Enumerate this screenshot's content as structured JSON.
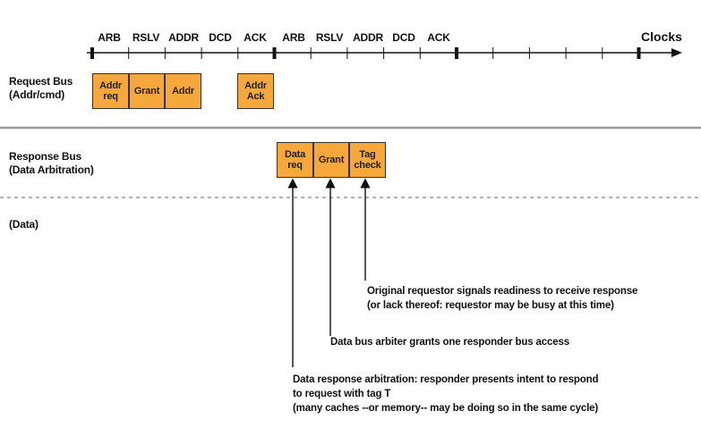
{
  "timeline": {
    "phases": [
      "ARB",
      "RSLV",
      "ADDR",
      "DCD",
      "ACK",
      "ARB",
      "RSLV",
      "ADDR",
      "DCD",
      "ACK"
    ],
    "axis_label": "Clocks"
  },
  "request_bus": {
    "label_line1": "Request Bus",
    "label_line2": "(Addr/cmd)",
    "boxes": [
      {
        "line1": "Addr",
        "line2": "req"
      },
      {
        "line1": "Grant",
        "line2": ""
      },
      {
        "line1": "Addr",
        "line2": ""
      },
      {
        "line1": "Addr",
        "line2": "Ack"
      }
    ]
  },
  "response_bus": {
    "label_line1": "Response Bus",
    "label_line2": "(Data Arbitration)",
    "boxes": [
      {
        "line1": "Data",
        "line2": "req"
      },
      {
        "line1": "Grant",
        "line2": ""
      },
      {
        "line1": "Tag",
        "line2": "check"
      }
    ]
  },
  "data_bus": {
    "label": "(Data)"
  },
  "annotations": {
    "tag_check_line1": "Original requestor signals readiness to receive response",
    "tag_check_line2": "(or lack thereof: requestor may be busy at this time)",
    "grant": "Data bus arbiter grants one responder bus access",
    "data_req_line1": "Data response arbitration: responder presents intent to respond",
    "data_req_line2": "to request with tag T",
    "data_req_line3": "(many caches --or memory-- may be doing so in the same cycle)"
  },
  "colors": {
    "box_fill": "#f6a83c",
    "separator": "#999999"
  }
}
